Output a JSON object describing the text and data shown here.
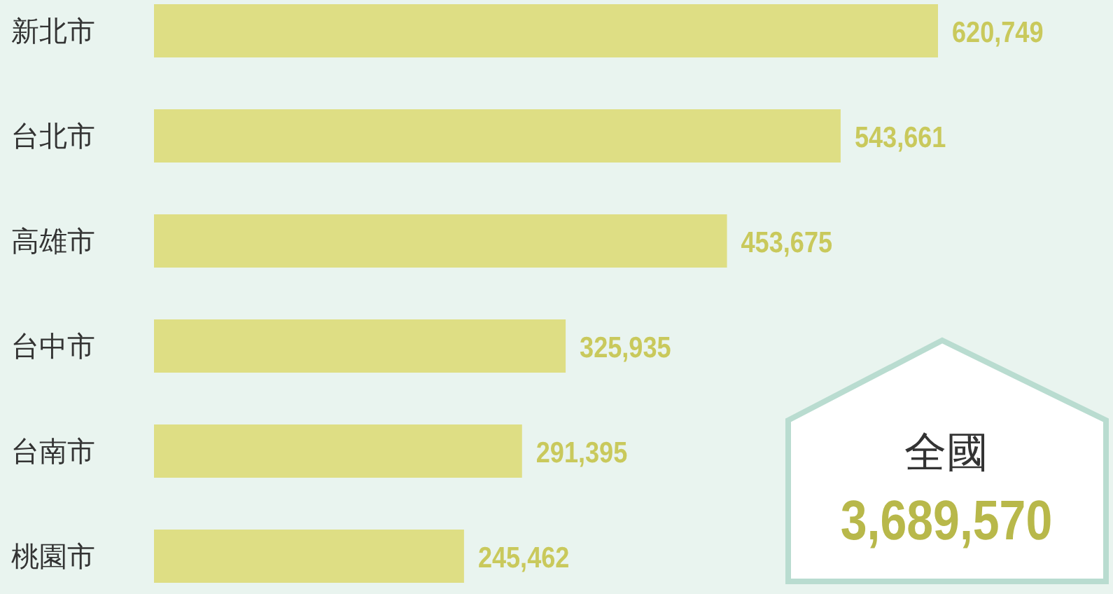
{
  "chart_data": {
    "type": "bar",
    "orientation": "horizontal",
    "categories": [
      "新北市",
      "台北市",
      "高雄市",
      "台中市",
      "台南市",
      "桃園市"
    ],
    "values": [
      620749,
      543661,
      453675,
      325935,
      291395,
      245462
    ],
    "value_labels": [
      "620,749",
      "543,661",
      "453,675",
      "325,935",
      "291,395",
      "245,462"
    ],
    "color": "#dede84",
    "annotations": [
      "全國",
      "3,689,570"
    ]
  }
}
